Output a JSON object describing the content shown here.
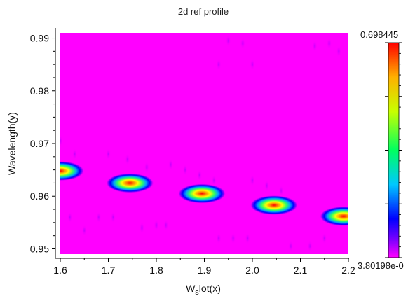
{
  "chart_data": {
    "type": "heatmap",
    "title": "2d ref profile",
    "xlabel_main": "W",
    "xlabel_sub": "s",
    "xlabel_rest": "lot(x)",
    "ylabel": "Wavelength(y)",
    "xlim": [
      1.6,
      2.2
    ],
    "ylim": [
      0.949,
      0.991
    ],
    "x_ticks": [
      1.6,
      1.7,
      1.8,
      1.9,
      2.0,
      2.1,
      2.2
    ],
    "x_tick_labels": [
      "1.6",
      "1.7",
      "1.8",
      "1.9",
      "2.0",
      "2.1",
      "2.2"
    ],
    "y_ticks": [
      0.95,
      0.96,
      0.97,
      0.98,
      0.99
    ],
    "y_tick_labels": [
      "0.95",
      "0.96",
      "0.97",
      "0.98",
      "0.99"
    ],
    "colorbar": {
      "max_label": "0.698445",
      "min_label": "3.80198e-0",
      "max": 0.698445,
      "min": 0
    },
    "background_color": "#ff00ff",
    "peaks": [
      {
        "x": 1.6,
        "y": 0.9648,
        "value": 0.6984
      },
      {
        "x": 1.745,
        "y": 0.9625,
        "value": 0.6984
      },
      {
        "x": 1.895,
        "y": 0.9605,
        "value": 0.6984
      },
      {
        "x": 2.045,
        "y": 0.9583,
        "value": 0.6984
      },
      {
        "x": 2.19,
        "y": 0.9562,
        "value": 0.6984
      }
    ],
    "minor_spots": [
      {
        "x": 1.6,
        "y": 0.9705
      },
      {
        "x": 1.63,
        "y": 0.968
      },
      {
        "x": 1.62,
        "y": 0.956
      },
      {
        "x": 1.65,
        "y": 0.9535
      },
      {
        "x": 1.68,
        "y": 0.956
      },
      {
        "x": 1.71,
        "y": 0.956
      },
      {
        "x": 1.7,
        "y": 0.968
      },
      {
        "x": 1.74,
        "y": 0.967
      },
      {
        "x": 1.78,
        "y": 0.9655
      },
      {
        "x": 1.77,
        "y": 0.954
      },
      {
        "x": 1.8,
        "y": 0.9545
      },
      {
        "x": 1.82,
        "y": 0.9545
      },
      {
        "x": 1.83,
        "y": 0.966
      },
      {
        "x": 1.86,
        "y": 0.965
      },
      {
        "x": 1.89,
        "y": 0.964
      },
      {
        "x": 1.92,
        "y": 0.963
      },
      {
        "x": 1.93,
        "y": 0.952
      },
      {
        "x": 1.96,
        "y": 0.952
      },
      {
        "x": 1.99,
        "y": 0.952
      },
      {
        "x": 2.0,
        "y": 0.963
      },
      {
        "x": 2.03,
        "y": 0.962
      },
      {
        "x": 2.06,
        "y": 0.961
      },
      {
        "x": 2.08,
        "y": 0.9505
      },
      {
        "x": 2.12,
        "y": 0.9505
      },
      {
        "x": 2.15,
        "y": 0.952
      },
      {
        "x": 1.95,
        "y": 0.9895
      },
      {
        "x": 1.98,
        "y": 0.989
      },
      {
        "x": 2.13,
        "y": 0.9885
      },
      {
        "x": 2.16,
        "y": 0.989
      },
      {
        "x": 2.18,
        "y": 0.9875
      },
      {
        "x": 2.0,
        "y": 0.985
      },
      {
        "x": 1.93,
        "y": 0.985
      }
    ]
  }
}
